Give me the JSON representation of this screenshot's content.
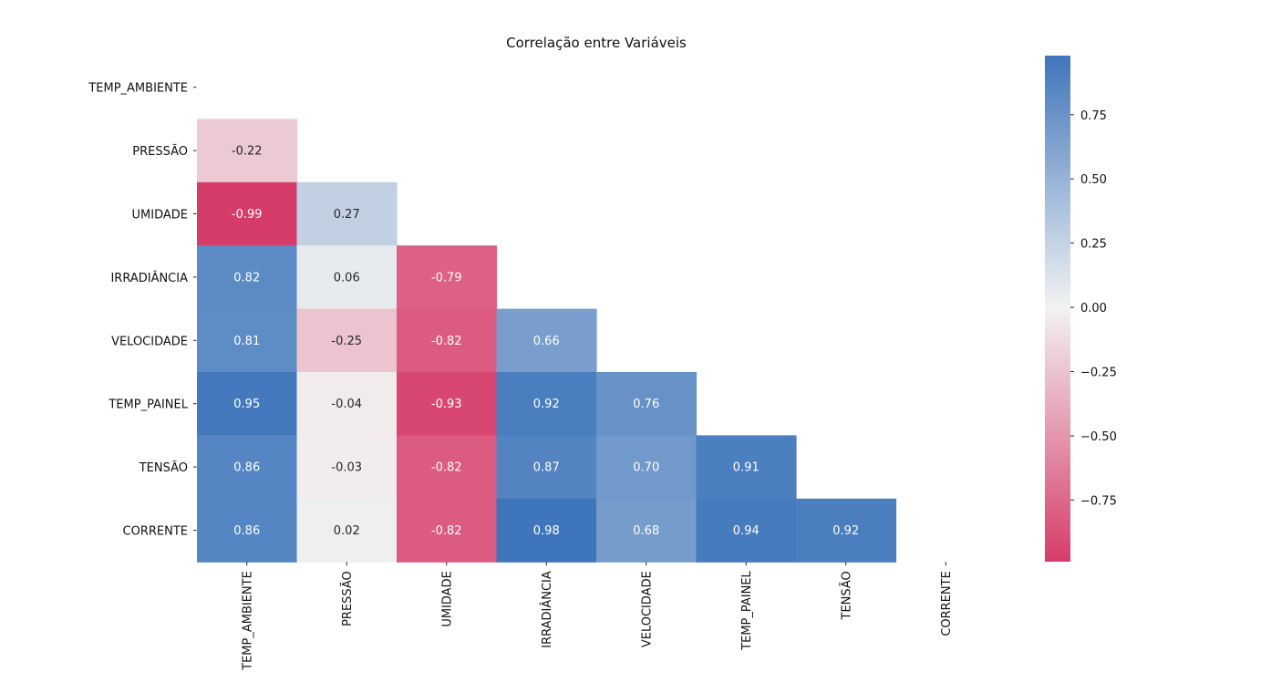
{
  "chart_data": {
    "type": "heatmap",
    "title": "Correlação entre Variáveis",
    "variables": [
      "TEMP_AMBIENTE",
      "PRESSÃO",
      "UMIDADE",
      "IRRADIÂNCIA",
      "VELOCIDADE",
      "TEMP_PAINEL",
      "TENSÃO",
      "CORRENTE"
    ],
    "mask": "upper-triangle-including-diagonal",
    "values": [
      [
        null,
        null,
        null,
        null,
        null,
        null,
        null,
        null
      ],
      [
        -0.22,
        null,
        null,
        null,
        null,
        null,
        null,
        null
      ],
      [
        -0.99,
        0.27,
        null,
        null,
        null,
        null,
        null,
        null
      ],
      [
        0.82,
        0.06,
        -0.79,
        null,
        null,
        null,
        null,
        null
      ],
      [
        0.81,
        -0.25,
        -0.82,
        0.66,
        null,
        null,
        null,
        null
      ],
      [
        0.95,
        -0.04,
        -0.93,
        0.92,
        0.76,
        null,
        null,
        null
      ],
      [
        0.86,
        -0.03,
        -0.82,
        0.87,
        0.7,
        0.91,
        null,
        null
      ],
      [
        0.86,
        0.02,
        -0.82,
        0.98,
        0.68,
        0.94,
        0.92,
        null
      ]
    ],
    "colorbar": {
      "vmin": -0.99,
      "vmax": 0.98,
      "ticks": [
        0.75,
        0.5,
        0.25,
        0.0,
        -0.25,
        -0.5,
        -0.75
      ],
      "tick_labels": [
        "0.75",
        "0.50",
        "0.25",
        "0.00",
        "−0.25",
        "−0.50",
        "−0.75"
      ],
      "colors": {
        "negative": "#d63c69",
        "center": "#f2f2f2",
        "positive": "#3f76bb"
      }
    }
  }
}
